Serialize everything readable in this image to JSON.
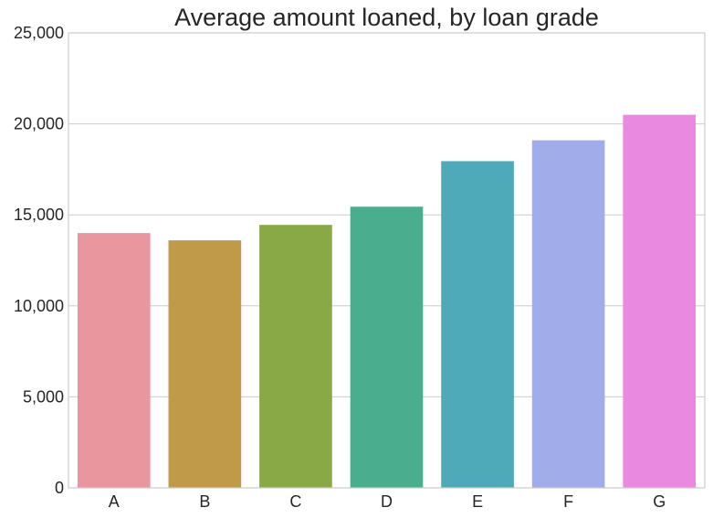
{
  "chart_data": {
    "type": "bar",
    "title": "Average amount loaned, by loan grade",
    "xlabel": "",
    "ylabel": "",
    "categories": [
      "A",
      "B",
      "C",
      "D",
      "E",
      "F",
      "G"
    ],
    "values": [
      14000,
      13600,
      14450,
      15450,
      17950,
      19100,
      20500
    ],
    "colors": [
      "#e9969f",
      "#c19a49",
      "#89a947",
      "#4aad8e",
      "#4eaab9",
      "#a0adea",
      "#e98ae0"
    ],
    "ylim": [
      0,
      25000
    ],
    "yticks": [
      0,
      5000,
      10000,
      15000,
      20000,
      25000
    ],
    "ytick_labels": [
      "0",
      "5,000",
      "10,000",
      "15,000",
      "20,000",
      "25,000"
    ],
    "grid": true,
    "legend": "none"
  }
}
